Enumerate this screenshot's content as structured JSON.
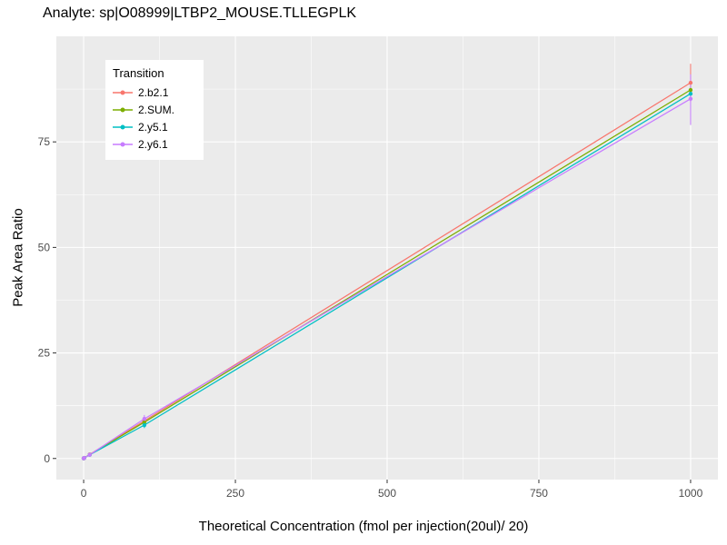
{
  "chart_data": {
    "type": "line",
    "title": "Analyte: sp|O08999|LTBP2_MOUSE.TLLEGPLK",
    "xlabel": "Theoretical Concentration (fmol per injection(20ul)/ 20)",
    "ylabel": "Peak Area Ratio",
    "legend": {
      "title": "Transition",
      "position": "inside-top-left"
    },
    "xlim": [
      -45,
      1045
    ],
    "ylim": [
      -5,
      100
    ],
    "x_ticks": [
      0,
      250,
      500,
      750,
      1000
    ],
    "y_ticks": [
      0,
      25,
      50,
      75
    ],
    "grid": true,
    "colors": {
      "panel_bg": "#EBEBEB",
      "grid": "#FFFFFF",
      "tick_label": "#4D4D4D",
      "tick_mark": "#333333",
      "legend_bg": "#FFFFFF",
      "axis_title": "#000000"
    },
    "series": [
      {
        "name": "2.b2.1",
        "color": "#F8766D",
        "points": [
          {
            "x": 0,
            "y": 0.05
          },
          {
            "x": 1,
            "y": 0.14
          },
          {
            "x": 10,
            "y": 0.95
          },
          {
            "x": 100,
            "y": 8.9
          },
          {
            "x": 1000,
            "y": 89.0,
            "ylo": 84.5,
            "yhi": 93.5
          }
        ]
      },
      {
        "name": "2.SUM.",
        "color": "#7CAE00",
        "points": [
          {
            "x": 0,
            "y": 0.05
          },
          {
            "x": 1,
            "y": 0.13
          },
          {
            "x": 10,
            "y": 0.9
          },
          {
            "x": 100,
            "y": 8.6
          },
          {
            "x": 1000,
            "y": 87.3,
            "ylo": 85.8,
            "yhi": 88.8
          }
        ]
      },
      {
        "name": "2.y5.1",
        "color": "#00BFC4",
        "points": [
          {
            "x": 0,
            "y": 0.05
          },
          {
            "x": 1,
            "y": 0.13
          },
          {
            "x": 10,
            "y": 0.88
          },
          {
            "x": 100,
            "y": 7.9,
            "ylo": 7.2,
            "yhi": 8.5
          },
          {
            "x": 1000,
            "y": 86.4,
            "ylo": 85.0,
            "yhi": 87.8
          }
        ]
      },
      {
        "name": "2.y6.1",
        "color": "#C77CFF",
        "points": [
          {
            "x": 0,
            "y": 0.05
          },
          {
            "x": 1,
            "y": 0.13
          },
          {
            "x": 10,
            "y": 0.87
          },
          {
            "x": 100,
            "y": 9.4,
            "ylo": 8.4,
            "yhi": 10.3
          },
          {
            "x": 1000,
            "y": 85.2,
            "ylo": 79.0,
            "yhi": 91.0
          }
        ]
      }
    ]
  }
}
